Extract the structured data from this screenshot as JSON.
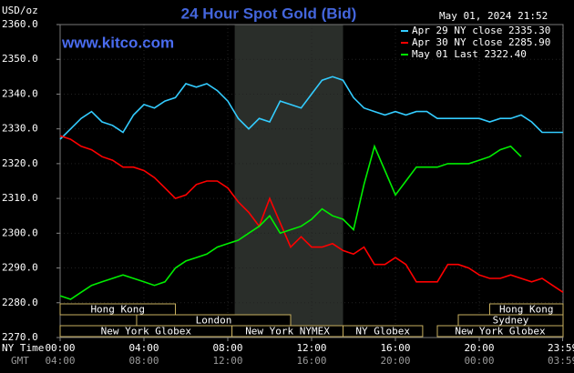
{
  "chart_data": {
    "type": "line",
    "title": "24 Hour Spot Gold (Bid)",
    "y_label": "USD/oz",
    "timestamp": "May 01, 2024 21:52",
    "watermark": "www.kitco.com",
    "x_label": "NY Time",
    "x2_label": "GMT",
    "x": [
      0,
      0.5,
      1,
      1.5,
      2,
      2.5,
      3,
      3.5,
      4,
      4.5,
      5,
      5.5,
      6,
      6.5,
      7,
      7.5,
      8,
      8.5,
      9,
      9.5,
      10,
      10.5,
      11,
      11.5,
      12,
      12.5,
      13,
      13.5,
      14,
      14.5,
      15,
      15.5,
      16,
      16.5,
      17,
      17.5,
      18,
      18.5,
      19,
      19.5,
      20,
      20.5,
      21,
      21.5,
      22,
      22.5,
      23,
      23.5,
      24
    ],
    "xlim": [
      0,
      24
    ],
    "xticks": [
      {
        "value": 0,
        "label": "00:00"
      },
      {
        "value": 4,
        "label": "04:00"
      },
      {
        "value": 8,
        "label": "08:00"
      },
      {
        "value": 12,
        "label": "12:00"
      },
      {
        "value": 16,
        "label": "16:00"
      },
      {
        "value": 20,
        "label": "20:00"
      },
      {
        "value": 23.98,
        "label": "23:59"
      }
    ],
    "x2ticks": [
      "04:00",
      "08:00",
      "12:00",
      "16:00",
      "20:00",
      "00:00",
      "03:59"
    ],
    "ylim": [
      2270,
      2360
    ],
    "yticks": [
      {
        "value": 2270,
        "label": "2270.0"
      },
      {
        "value": 2280,
        "label": "2280.0"
      },
      {
        "value": 2290,
        "label": "2290.0"
      },
      {
        "value": 2300,
        "label": "2300.0"
      },
      {
        "value": 2310,
        "label": "2310.0"
      },
      {
        "value": 2320,
        "label": "2320.0"
      },
      {
        "value": 2330,
        "label": "2330.0"
      },
      {
        "value": 2340,
        "label": "2340.0"
      },
      {
        "value": 2350,
        "label": "2350.0"
      },
      {
        "value": 2360,
        "label": "2360.0"
      }
    ],
    "grid": true,
    "legend": "top-right",
    "highlight_range": [
      8.33,
      13.5
    ],
    "sessions": [
      {
        "name": "Hong Kong",
        "start": 0,
        "end": 5.5,
        "row": 0
      },
      {
        "name": "London",
        "start": 3.65,
        "end": 11,
        "row": 1
      },
      {
        "name": "New York Globex",
        "start": 0,
        "end": 8.2,
        "row": 2
      },
      {
        "name": "New York NYMEX",
        "start": 8.2,
        "end": 13.5,
        "row": 2
      },
      {
        "name": "NY Globex",
        "start": 13.5,
        "end": 17.3,
        "row": 2
      },
      {
        "name": "Hong Kong",
        "start": 20.5,
        "end": 24,
        "row": 0
      },
      {
        "name": "Sydney",
        "start": 19,
        "end": 24,
        "row": 1
      },
      {
        "name": "New York Globex",
        "start": 18,
        "end": 24,
        "row": 2
      }
    ],
    "series": [
      {
        "name": "Apr 29 NY close 2335.30",
        "color": "#33ccff",
        "values": [
          2327,
          2330,
          2333,
          2335,
          2332,
          2331,
          2329,
          2334,
          2337,
          2336,
          2338,
          2339,
          2343,
          2342,
          2343,
          2341,
          2338,
          2333,
          2330,
          2333,
          2332,
          2338,
          2337,
          2336,
          2340,
          2344,
          2345,
          2344,
          2339,
          2336,
          2335,
          2334,
          2335,
          2334,
          2335,
          2335,
          2333,
          2333,
          2333,
          2333,
          2333,
          2332,
          2333,
          2333,
          2334,
          2332,
          2329,
          2329,
          2329
        ]
      },
      {
        "name": "Apr 30 NY close 2285.90",
        "color": "#ff0000",
        "values": [
          2328,
          2327,
          2325,
          2324,
          2322,
          2321,
          2319,
          2319,
          2318,
          2316,
          2313,
          2310,
          2311,
          2314,
          2315,
          2315,
          2313,
          2309,
          2306,
          2302,
          2310,
          2303,
          2296,
          2299,
          2296,
          2296,
          2297,
          2295,
          2294,
          2296,
          2291,
          2291,
          2293,
          2291,
          2286,
          2286,
          2286,
          2291,
          2291,
          2290,
          2288,
          2287,
          2287,
          2288,
          2287,
          2286,
          2287,
          2285,
          2283
        ]
      },
      {
        "name": "May 01 Last 2322.40",
        "color": "#00ee00",
        "values": [
          2282,
          2281,
          2283,
          2285,
          2286,
          2287,
          2288,
          2287,
          2286,
          2285,
          2286,
          2290,
          2292,
          2293,
          2294,
          2296,
          2297,
          2298,
          2300,
          2302,
          2305,
          2300,
          2301,
          2302,
          2304,
          2307,
          2305,
          2304,
          2301,
          2314,
          2325,
          2318,
          2311,
          2315,
          2319,
          2319,
          2319,
          2320,
          2320,
          2320,
          2321,
          2322,
          2324,
          2325,
          2322,
          null,
          null,
          null,
          null
        ]
      }
    ]
  }
}
